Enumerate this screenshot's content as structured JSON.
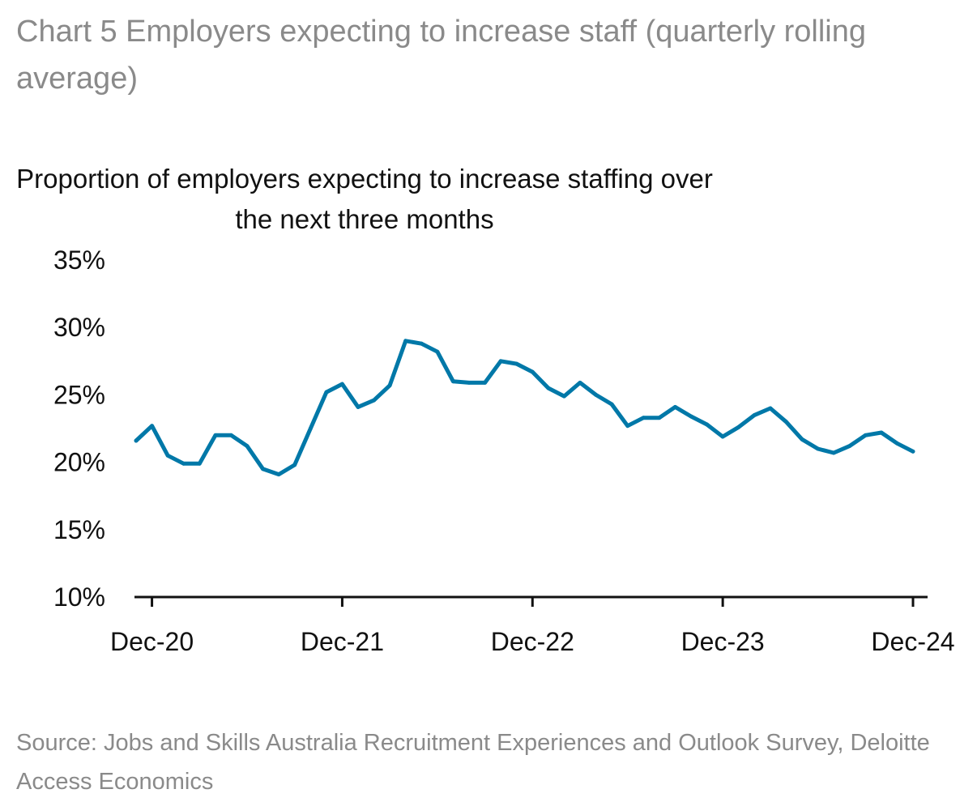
{
  "page": {
    "title": "Chart 5 Employers expecting to increase staff (quarterly rolling average)",
    "source": "Source: Jobs and Skills Australia Recruitment Experiences and Outlook Survey, Deloitte Access Economics"
  },
  "chart_data": {
    "type": "line",
    "ylabel": "Proportion of employers expecting to increase staffing over the next three months",
    "xlabel": "",
    "ylim": [
      10,
      35
    ],
    "yticks": [
      "10%",
      "15%",
      "20%",
      "25%",
      "30%",
      "35%"
    ],
    "xticks": [
      "Dec-20",
      "Dec-21",
      "Dec-22",
      "Dec-23",
      "Dec-24"
    ],
    "grid": false,
    "legend": "none",
    "line_color": "#0078a8",
    "x": [
      "Nov-20",
      "Dec-20",
      "Jan-21",
      "Feb-21",
      "Mar-21",
      "Apr-21",
      "May-21",
      "Jun-21",
      "Jul-21",
      "Aug-21",
      "Sep-21",
      "Oct-21",
      "Nov-21",
      "Dec-21",
      "Jan-22",
      "Feb-22",
      "Mar-22",
      "Apr-22",
      "May-22",
      "Jun-22",
      "Jul-22",
      "Aug-22",
      "Sep-22",
      "Oct-22",
      "Nov-22",
      "Dec-22",
      "Jan-23",
      "Feb-23",
      "Mar-23",
      "Apr-23",
      "May-23",
      "Jun-23",
      "Jul-23",
      "Aug-23",
      "Sep-23",
      "Oct-23",
      "Nov-23",
      "Dec-23",
      "Jan-24",
      "Feb-24",
      "Mar-24",
      "Apr-24",
      "May-24",
      "Jun-24",
      "Jul-24",
      "Aug-24",
      "Sep-24",
      "Oct-24",
      "Nov-24",
      "Dec-24"
    ],
    "series": [
      {
        "values": [
          21.6,
          22.7,
          20.5,
          19.9,
          19.9,
          22.0,
          22.0,
          21.2,
          19.5,
          19.1,
          19.8,
          22.5,
          25.2,
          25.8,
          24.1,
          24.6,
          25.7,
          29.0,
          28.8,
          28.2,
          26.0,
          25.9,
          25.9,
          27.5,
          27.3,
          26.7,
          25.5,
          24.9,
          25.9,
          25.0,
          24.3,
          22.7,
          23.3,
          23.3,
          24.1,
          23.4,
          22.8,
          21.9,
          22.6,
          23.5,
          24.0,
          23.0,
          21.7,
          21.0,
          20.7,
          21.2,
          22.0,
          22.2,
          21.4,
          20.8
        ]
      }
    ]
  }
}
